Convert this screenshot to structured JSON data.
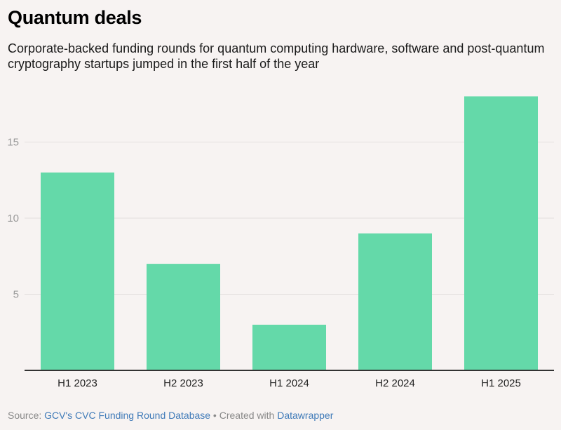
{
  "title": "Quantum deals",
  "subtitle": "Corporate-backed funding rounds for quantum computing hardware, software and post-quantum cryptography startups jumped in the first half of the year",
  "footer": {
    "source_prefix": "Source: ",
    "source_link": "GCV's CVC Funding Round Database",
    "separator": " • Created with ",
    "tool_link": "Datawrapper"
  },
  "colors": {
    "bar": "#64d9a9",
    "grid": "#e3dfde",
    "axis": "#333333",
    "tick_label": "#999999",
    "category_label": "#222222",
    "link": "#3f7ab8"
  },
  "chart_data": {
    "type": "bar",
    "title": "Quantum deals",
    "subtitle": "Corporate-backed funding rounds for quantum computing hardware, software and post-quantum cryptography startups jumped in the first half of the year",
    "categories": [
      "H1 2023",
      "H2 2023",
      "H1 2024",
      "H2 2024",
      "H1 2025"
    ],
    "values": [
      13,
      7,
      3,
      9,
      18
    ],
    "xlabel": "",
    "ylabel": "",
    "ylim": [
      0,
      19
    ],
    "yticks": [
      5,
      10,
      15
    ],
    "grid": true,
    "legend": "none"
  }
}
